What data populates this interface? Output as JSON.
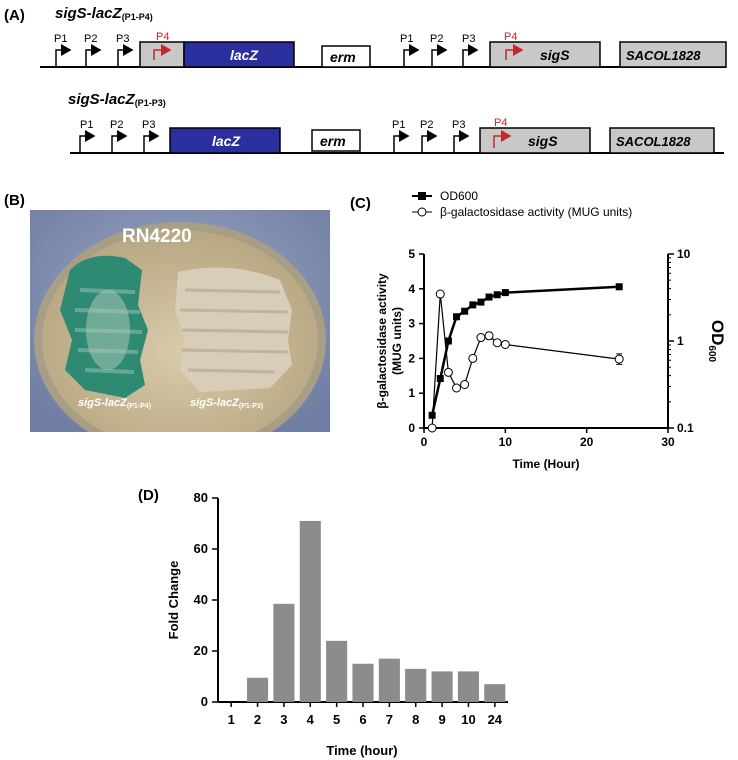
{
  "panels": {
    "a": "(A)",
    "b": "(B)",
    "c": "(C)",
    "d": "(D)"
  },
  "constructs": [
    {
      "title": "sigS-lacZ",
      "subscript": "(P1-P4)",
      "promoters_left": [
        "P1",
        "P2",
        "P3"
      ],
      "p4_left": "P4",
      "gene_lacz": "lacZ",
      "gene_erm": "erm",
      "promoters_right": [
        "P1",
        "P2",
        "P3"
      ],
      "p4_right": "P4",
      "gene_sigs": "sigS",
      "gene_sacol": "SACOL1828"
    },
    {
      "title": "sigS-lacZ",
      "subscript": "(P1-P3)",
      "promoters_left": [
        "P1",
        "P2",
        "P3"
      ],
      "gene_lacz": "lacZ",
      "gene_erm": "erm",
      "promoters_right": [
        "P1",
        "P2",
        "P3"
      ],
      "p4_right": "P4",
      "gene_sigs": "sigS",
      "gene_sacol": "SACOL1828"
    }
  ],
  "plate": {
    "strain": "RN4220",
    "left_label": "sigS-lacZ",
    "left_sub": "(P1-P4)",
    "right_label": "sigS-lacZ",
    "right_sub": "(P1-P3)"
  },
  "colors": {
    "lacz": "#2b2f9e",
    "gene_box": "#c8c8c8",
    "p4_arrow": "#c0282d",
    "bar": "#8c8c8c",
    "plate_bg": "#7f8fb3",
    "agar": "#c8b896",
    "blue_colony": "#2e8a72",
    "white_colony": "#d8cdb8"
  },
  "chart_data": [
    {
      "type": "line",
      "legend_placement": "top",
      "legend": [
        "OD600",
        "β-galactosidase activity (MUG units)"
      ],
      "legend_sub": "600",
      "xlabel": "Time (Hour)",
      "ylabel_line1": "β-galactosidase activity",
      "ylabel_line2": "(MUG units)",
      "y2label": "OD",
      "y2label_sub": "600",
      "xlim": [
        0,
        30
      ],
      "ylim": [
        0,
        5
      ],
      "y2lim": [
        0.1,
        10
      ],
      "y2_scale": "log",
      "x_ticks": [
        "0",
        "10",
        "20",
        "30"
      ],
      "y_ticks": [
        "0",
        "1",
        "2",
        "3",
        "4",
        "5"
      ],
      "y2_ticks": [
        "0.1",
        "1",
        "10"
      ],
      "series": [
        {
          "name": "OD600",
          "axis": "right",
          "marker": "filled-square",
          "x": [
            1,
            2,
            3,
            4,
            5,
            6,
            7,
            8,
            9,
            10,
            24
          ],
          "y": [
            0.14,
            0.37,
            1.0,
            1.9,
            2.2,
            2.6,
            2.8,
            3.2,
            3.4,
            3.6,
            4.2
          ]
        },
        {
          "name": "β-galactosidase activity (MUG units)",
          "axis": "left",
          "marker": "open-circle",
          "x": [
            1,
            2,
            3,
            4,
            5,
            6,
            7,
            8,
            9,
            10,
            24
          ],
          "y": [
            0.0,
            3.85,
            1.6,
            1.15,
            1.25,
            2.0,
            2.6,
            2.65,
            2.45,
            2.4,
            1.98
          ],
          "err": [
            0,
            0,
            0,
            0,
            0,
            0,
            0,
            0.1,
            0,
            0,
            0.15
          ]
        }
      ]
    },
    {
      "type": "bar",
      "categories": [
        "1",
        "2",
        "3",
        "4",
        "5",
        "6",
        "7",
        "8",
        "9",
        "10",
        "24"
      ],
      "values": [
        0,
        9.5,
        38.5,
        71,
        24,
        15,
        17,
        13,
        12,
        12,
        7
      ],
      "xlabel": "Time (hour)",
      "ylabel": "Fold Change",
      "ylim": [
        0,
        80
      ],
      "y_ticks": [
        "0",
        "20",
        "40",
        "60",
        "80"
      ]
    }
  ]
}
